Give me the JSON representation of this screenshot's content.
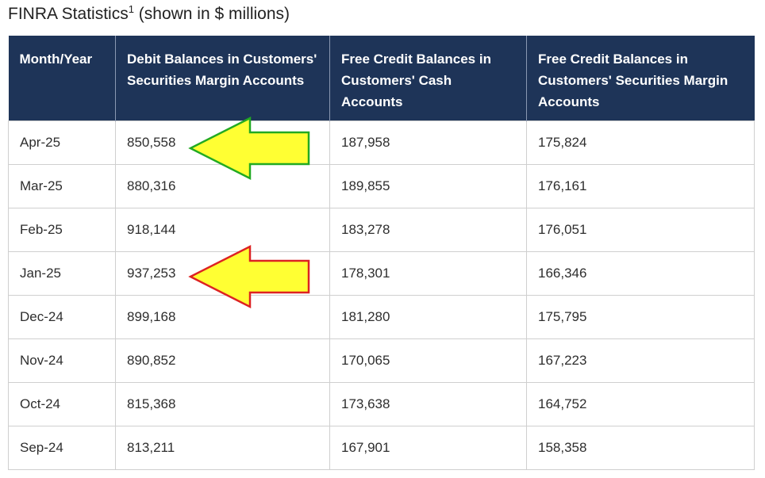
{
  "title": {
    "main": "FINRA Statistics",
    "footnote": "1",
    "suffix": " (shown in $ millions)"
  },
  "table": {
    "headers": [
      "Month/Year",
      "Debit Balances in Customers' Securities Margin Accounts",
      "Free Credit Balances in Customers' Cash Accounts",
      "Free Credit Balances in Customers' Securities Margin Accounts"
    ],
    "rows": [
      [
        "Apr-25",
        "850,558",
        "187,958",
        "175,824"
      ],
      [
        "Mar-25",
        "880,316",
        "189,855",
        "176,161"
      ],
      [
        "Feb-25",
        "918,144",
        "183,278",
        "176,051"
      ],
      [
        "Jan-25",
        "937,253",
        "178,301",
        "166,346"
      ],
      [
        "Dec-24",
        "899,168",
        "181,280",
        "175,795"
      ],
      [
        "Nov-24",
        "890,852",
        "170,065",
        "167,223"
      ],
      [
        "Oct-24",
        "815,368",
        "173,638",
        "164,752"
      ],
      [
        "Sep-24",
        "813,211",
        "167,901",
        "158,358"
      ]
    ]
  },
  "annotations": [
    {
      "name": "arrow-green-outline",
      "points_to": "Apr-25",
      "fill": "#ffff33",
      "stroke": "#22aa22"
    },
    {
      "name": "arrow-red-outline",
      "points_to": "Jan-25",
      "fill": "#ffff33",
      "stroke": "#dd2222"
    }
  ]
}
